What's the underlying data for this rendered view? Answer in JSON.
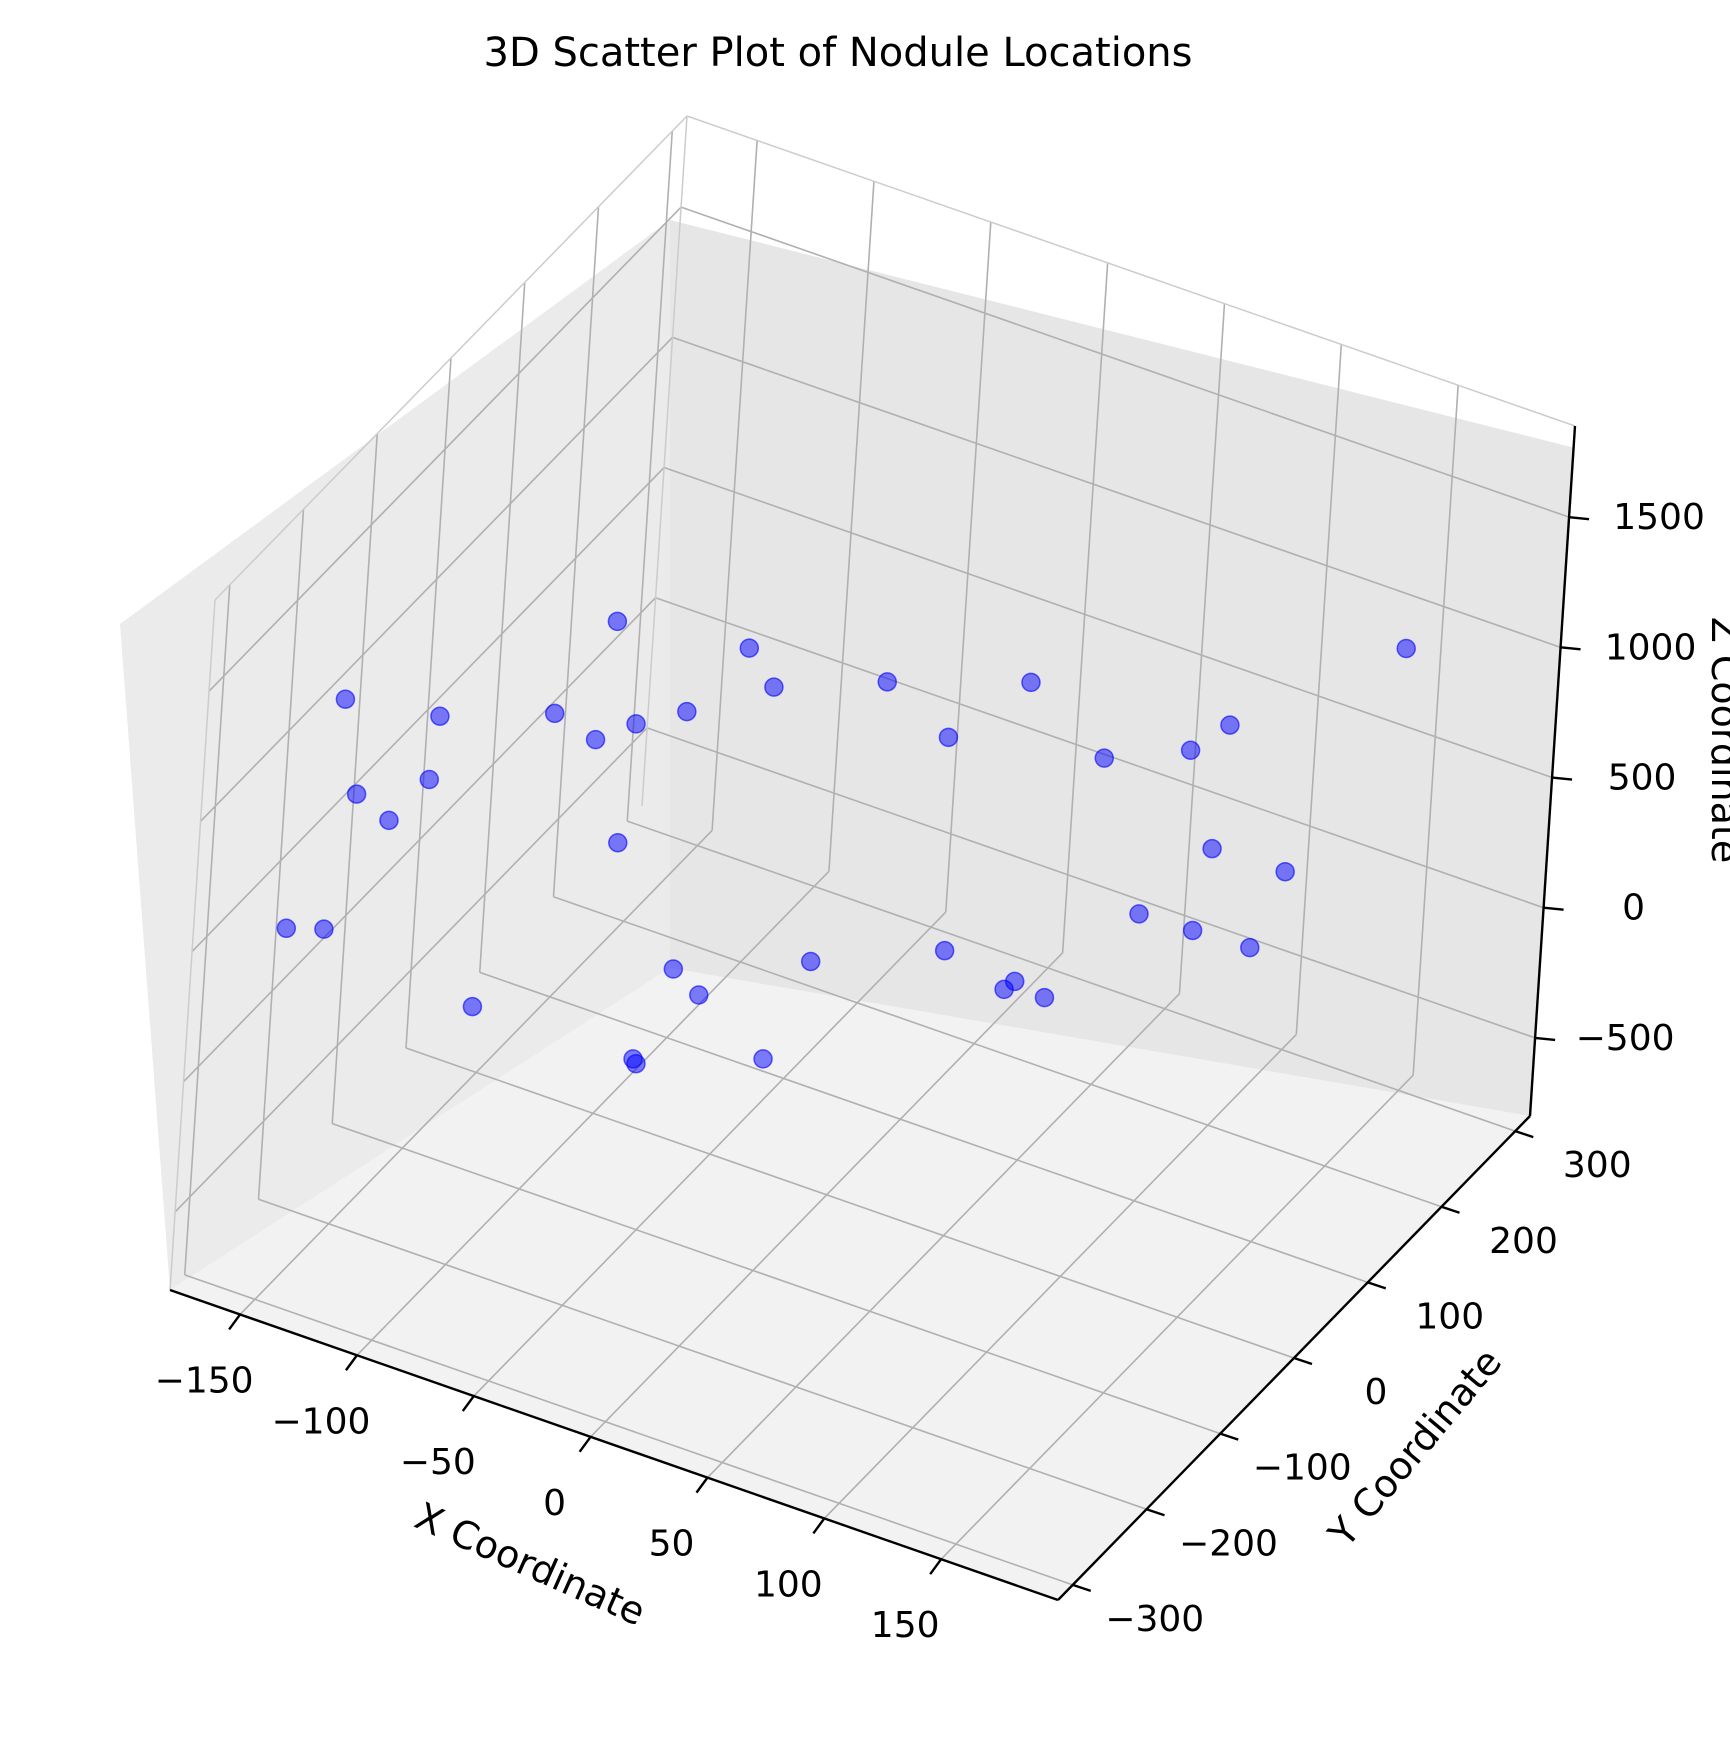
{
  "chart_data": {
    "type": "scatter",
    "projection": "3d",
    "title": "3D Scatter Plot of Nodule Locations",
    "xlabel": "X Coordinate",
    "ylabel": "Y Coordinate",
    "zlabel": "Z Coordinate",
    "xticks": [
      "−150",
      "−100",
      "−50",
      "0",
      "50",
      "100",
      "150"
    ],
    "yticks": [
      "−300",
      "−200",
      "−100",
      "0",
      "100",
      "200",
      "300"
    ],
    "zticks": [
      "−500",
      "0",
      "500",
      "1000",
      "1500"
    ],
    "xlim": [
      -180,
      200
    ],
    "ylim": [
      -320,
      320
    ],
    "zlim": [
      -800,
      1850
    ],
    "grid": true,
    "marker_color": "#0000ff",
    "marker_alpha": 0.5,
    "series": [
      {
        "points": [
          [
            -140,
            -260,
            1420
          ],
          [
            -60,
            -150,
            1650
          ],
          [
            -100,
            -260,
            1480
          ],
          [
            -65,
            -215,
            1470
          ],
          [
            -40,
            -240,
            1520
          ],
          [
            -35,
            -200,
            1480
          ],
          [
            -10,
            -90,
            1380
          ],
          [
            -25,
            -250,
            1200
          ],
          [
            -120,
            -200,
            1000
          ],
          [
            -130,
            -220,
            870
          ],
          [
            -150,
            -200,
            850
          ],
          [
            -30,
            -60,
            1380
          ],
          [
            20,
            -30,
            1320
          ],
          [
            -40,
            -110,
            1250
          ],
          [
            110,
            -20,
            1280
          ],
          [
            60,
            40,
            1240
          ],
          [
            50,
            -40,
            1230
          ],
          [
            130,
            90,
            1150
          ],
          [
            120,
            70,
            1080
          ],
          [
            170,
            200,
            1250
          ],
          [
            160,
            80,
            710
          ],
          [
            60,
            -60,
            500
          ],
          [
            -10,
            -170,
            430
          ],
          [
            -30,
            -140,
            380
          ],
          [
            10,
            -80,
            360
          ],
          [
            100,
            80,
            360
          ],
          [
            120,
            90,
            330
          ],
          [
            -170,
            -220,
            330
          ],
          [
            -160,
            -200,
            300
          ],
          [
            -20,
            -220,
            280
          ],
          [
            -90,
            -220,
            280
          ],
          [
            70,
            10,
            210
          ],
          [
            80,
            20,
            150
          ],
          [
            10,
            -140,
            160
          ],
          [
            -30,
            -190,
            180
          ],
          [
            60,
            30,
            90
          ],
          [
            130,
            140,
            150
          ],
          [
            100,
            180,
            320
          ]
        ]
      }
    ]
  }
}
